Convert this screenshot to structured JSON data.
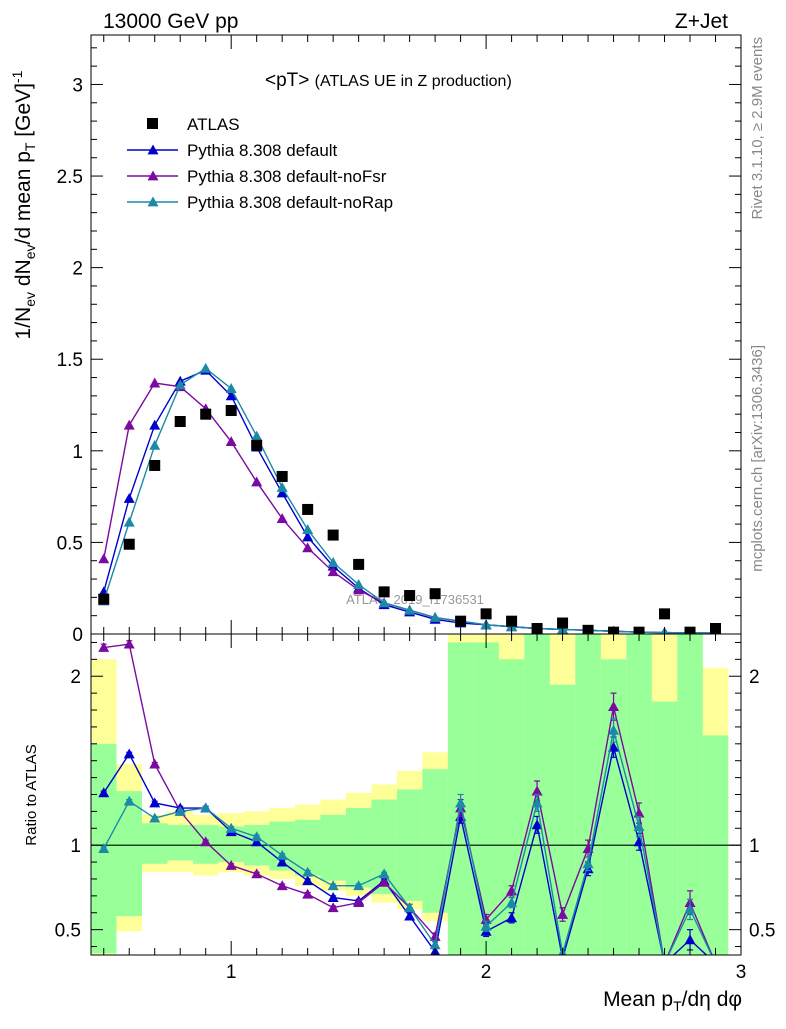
{
  "header": {
    "left": "13000 GeV pp",
    "right": "Z+Jet"
  },
  "side_text": {
    "rivet": "Rivet 3.1.10, ≥ 2.9M events",
    "mcplots": "mcplots.cern.ch [arXiv:1306.3436]"
  },
  "plot_title": {
    "main": "<pT>",
    "sub": "(ATLAS UE in Z production)"
  },
  "watermark": "ATLAS_2019_I1736531",
  "colors": {
    "data": "#000000",
    "default": "#0000cc",
    "noFsr": "#7b0aa0",
    "noRap": "#1a8aa8",
    "band_inner": "#99ff99",
    "band_outer": "#ffff99"
  },
  "chart_data": [
    {
      "type": "scatter",
      "panel": "main",
      "ylabel": "1/Nev dNev/d mean pT [GeV]-1",
      "ylim": [
        0,
        3.27
      ],
      "xlim": [
        0.45,
        3.0
      ],
      "y_ticks": [
        "0",
        "0.5",
        "1",
        "1.5",
        "2",
        "2.5",
        "3"
      ],
      "x": [
        0.5,
        0.6,
        0.7,
        0.8,
        0.9,
        1.0,
        1.1,
        1.2,
        1.3,
        1.4,
        1.5,
        1.6,
        1.7,
        1.8,
        1.9,
        2.0,
        2.1,
        2.2,
        2.3,
        2.4,
        2.5,
        2.6,
        2.7,
        2.8,
        2.9
      ],
      "series": [
        {
          "name": "ATLAS",
          "marker": "square",
          "values": [
            0.19,
            0.49,
            0.92,
            1.16,
            1.2,
            1.22,
            1.03,
            0.86,
            0.68,
            0.54,
            0.38,
            0.23,
            0.21,
            0.22,
            0.07,
            0.11,
            0.07,
            0.03,
            0.06,
            0.02,
            0.01,
            0.01,
            0.11,
            0.01,
            0.03
          ]
        },
        {
          "name": "Pythia 8.308 default",
          "marker": "triangle",
          "values": [
            0.23,
            0.74,
            1.14,
            1.38,
            1.44,
            1.3,
            1.02,
            0.77,
            0.53,
            0.37,
            0.25,
            0.16,
            0.12,
            0.08,
            0.06,
            0.05,
            0.04,
            0.03,
            0.025,
            0.02,
            0.015,
            0.01,
            0.008,
            0.006,
            0.005
          ]
        },
        {
          "name": "Pythia 8.308 default-noFsr",
          "marker": "triangle",
          "values": [
            0.41,
            1.14,
            1.37,
            1.35,
            1.23,
            1.05,
            0.83,
            0.63,
            0.47,
            0.34,
            0.24,
            0.17,
            0.13,
            0.09,
            0.07,
            0.05,
            0.04,
            0.03,
            0.025,
            0.02,
            0.015,
            0.01,
            0.008,
            0.006,
            0.005
          ]
        },
        {
          "name": "Pythia 8.308 default-noRap",
          "marker": "triangle",
          "values": [
            0.18,
            0.61,
            1.03,
            1.36,
            1.45,
            1.34,
            1.08,
            0.8,
            0.57,
            0.39,
            0.27,
            0.17,
            0.13,
            0.09,
            0.07,
            0.05,
            0.04,
            0.03,
            0.025,
            0.02,
            0.015,
            0.01,
            0.008,
            0.006,
            0.005
          ]
        }
      ]
    },
    {
      "type": "line",
      "panel": "ratio",
      "ylabel": "Ratio to ATLAS",
      "xlabel": "Mean pT/dη dφ",
      "ylim": [
        0.35,
        2.25
      ],
      "xlim": [
        0.45,
        3.0
      ],
      "x_ticks": [
        "1",
        "2",
        "3"
      ],
      "y_ticks": [
        "0.5",
        "1",
        "2"
      ],
      "x": [
        0.5,
        0.6,
        0.7,
        0.8,
        0.9,
        1.0,
        1.1,
        1.2,
        1.3,
        1.4,
        1.5,
        1.6,
        1.7,
        1.8,
        1.9,
        2.0,
        2.1,
        2.2,
        2.3,
        2.4,
        2.5,
        2.6,
        2.7,
        2.8,
        2.9
      ],
      "band_edges": [
        0.45,
        0.55,
        0.65,
        0.75,
        0.85,
        0.95,
        1.05,
        1.15,
        1.25,
        1.35,
        1.45,
        1.55,
        1.65,
        1.75,
        1.85,
        1.95,
        2.05,
        2.15,
        2.25,
        2.35,
        2.45,
        2.55,
        2.65,
        2.75,
        2.85,
        2.95
      ],
      "band_inner": [
        [
          0.36,
          1.6
        ],
        [
          0.58,
          1.32
        ],
        [
          0.89,
          1.13
        ],
        [
          0.91,
          1.12
        ],
        [
          0.89,
          1.12
        ],
        [
          0.9,
          1.11
        ],
        [
          0.88,
          1.12
        ],
        [
          0.85,
          1.14
        ],
        [
          0.82,
          1.15
        ],
        [
          0.79,
          1.18
        ],
        [
          0.75,
          1.22
        ],
        [
          0.71,
          1.27
        ],
        [
          0.67,
          1.33
        ],
        [
          0.6,
          1.45
        ],
        [
          0.35,
          2.2
        ],
        [
          0.35,
          2.2
        ],
        [
          0.35,
          2.1
        ],
        [
          0.35,
          2.25
        ],
        [
          0.35,
          1.95
        ],
        [
          0.35,
          2.25
        ],
        [
          0.35,
          2.1
        ],
        [
          0.35,
          2.25
        ],
        [
          0.35,
          1.85
        ],
        [
          0.35,
          2.25
        ],
        [
          0.35,
          1.65
        ]
      ],
      "band_outer": [
        [
          0.34,
          2.1
        ],
        [
          0.49,
          1.48
        ],
        [
          0.84,
          1.18
        ],
        [
          0.84,
          1.2
        ],
        [
          0.82,
          1.18
        ],
        [
          0.84,
          1.19
        ],
        [
          0.82,
          1.2
        ],
        [
          0.8,
          1.22
        ],
        [
          0.76,
          1.24
        ],
        [
          0.73,
          1.27
        ],
        [
          0.7,
          1.31
        ],
        [
          0.66,
          1.36
        ],
        [
          0.62,
          1.44
        ],
        [
          0.55,
          1.55
        ],
        [
          0.35,
          2.25
        ],
        [
          0.35,
          2.25
        ],
        [
          0.35,
          2.25
        ],
        [
          0.35,
          2.25
        ],
        [
          0.35,
          2.25
        ],
        [
          0.35,
          2.25
        ],
        [
          0.35,
          2.25
        ],
        [
          0.35,
          2.25
        ],
        [
          0.35,
          2.25
        ],
        [
          0.35,
          2.25
        ],
        [
          0.35,
          2.05
        ]
      ],
      "series": [
        {
          "name": "Pythia 8.308 default",
          "values": [
            1.31,
            1.54,
            1.25,
            1.22,
            1.22,
            1.08,
            1.02,
            0.9,
            0.79,
            0.69,
            0.67,
            0.79,
            0.58,
            0.37,
            1.17,
            0.49,
            0.57,
            1.12,
            0.33,
            0.86,
            1.58,
            1.02,
            0.3,
            0.44,
            0.3
          ],
          "errors": [
            0.01,
            0.01,
            0.01,
            0.01,
            0.01,
            0.01,
            0.01,
            0.01,
            0.01,
            0.01,
            0.01,
            0.01,
            0.02,
            0.02,
            0.04,
            0.03,
            0.03,
            0.05,
            0.03,
            0.04,
            0.06,
            0.05,
            0.0,
            0.06,
            0.0
          ]
        },
        {
          "name": "Pythia 8.308 default-noFsr",
          "values": [
            2.17,
            2.19,
            1.48,
            1.2,
            1.02,
            0.88,
            0.83,
            0.76,
            0.71,
            0.63,
            0.66,
            0.78,
            0.63,
            0.46,
            1.22,
            0.56,
            0.73,
            1.32,
            0.59,
            0.98,
            1.82,
            1.19,
            0.3,
            0.66,
            0.3
          ],
          "errors": [
            0.02,
            0.02,
            0.01,
            0.01,
            0.01,
            0.01,
            0.01,
            0.01,
            0.01,
            0.01,
            0.01,
            0.01,
            0.02,
            0.02,
            0.05,
            0.03,
            0.03,
            0.06,
            0.04,
            0.05,
            0.08,
            0.06,
            0.0,
            0.07,
            0.0
          ]
        },
        {
          "name": "Pythia 8.308 default-noRap",
          "values": [
            0.98,
            1.26,
            1.16,
            1.2,
            1.22,
            1.1,
            1.05,
            0.94,
            0.84,
            0.76,
            0.76,
            0.83,
            0.63,
            0.41,
            1.25,
            0.52,
            0.66,
            1.25,
            0.36,
            0.89,
            1.68,
            1.11,
            0.3,
            0.62,
            0.3
          ],
          "errors": [
            0.01,
            0.01,
            0.01,
            0.01,
            0.01,
            0.01,
            0.01,
            0.01,
            0.01,
            0.01,
            0.01,
            0.01,
            0.02,
            0.02,
            0.05,
            0.03,
            0.03,
            0.05,
            0.03,
            0.04,
            0.07,
            0.06,
            0.0,
            0.06,
            0.0
          ]
        }
      ]
    }
  ]
}
